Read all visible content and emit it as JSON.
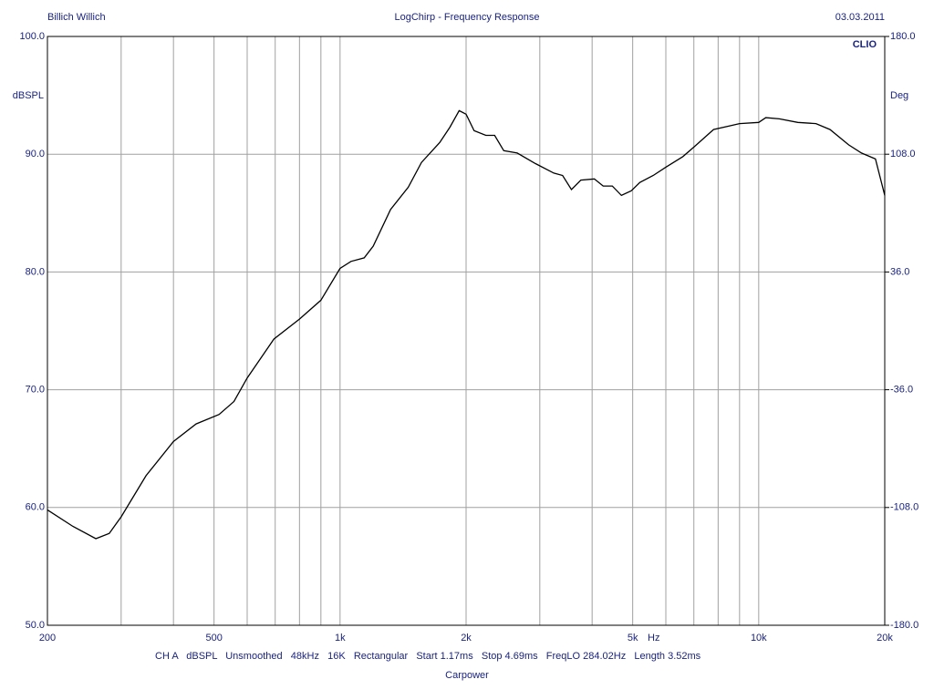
{
  "chart_data": {
    "type": "line",
    "title": "LogChirp - Frequency Response",
    "header_left": "Billich Willich",
    "header_right": "03.03.2011",
    "brand": "CLIO",
    "ylabel": "dBSPL",
    "y2label": "Deg",
    "xlabel": "Hz",
    "footer": "CH A   dBSPL   Unsmoothed   48kHz   16K   Rectangular   Start 1.17ms   Stop 4.69ms   FreqLO 284.02Hz   Length 3.52ms",
    "subfooter": "Carpower",
    "xscale": "log",
    "grid": true,
    "xlim": [
      200,
      20000
    ],
    "xticks": [
      200,
      500,
      {
        "value": 1000,
        "label": "1k"
      },
      {
        "value": 2000,
        "label": "2k"
      },
      {
        "value": 5000,
        "label": "5k"
      },
      {
        "value": 10000,
        "label": "10k"
      },
      {
        "value": 20000,
        "label": "20k"
      }
    ],
    "xminor_ticks": [
      300,
      400,
      600,
      700,
      800,
      900,
      3000,
      4000,
      6000,
      7000,
      8000,
      9000
    ],
    "ylim": [
      50,
      100
    ],
    "yticks": [
      {
        "value": 50,
        "label": "50.0"
      },
      {
        "value": 60,
        "label": "60.0"
      },
      {
        "value": 70,
        "label": "70.0"
      },
      {
        "value": 80,
        "label": "80.0"
      },
      {
        "value": 90,
        "label": "90.0"
      },
      {
        "value": 100,
        "label": "100.0"
      }
    ],
    "y2lim": [
      -180,
      180
    ],
    "y2ticks": [
      {
        "value": -180,
        "label": "-180.0"
      },
      {
        "value": -108,
        "label": "-108.0"
      },
      {
        "value": -36,
        "label": "-36.0"
      },
      {
        "value": 36,
        "label": "36.0"
      },
      {
        "value": 108,
        "label": "108.0"
      },
      {
        "value": 180,
        "label": "180.0"
      }
    ],
    "x": [
      200,
      230,
      261,
      281,
      300,
      344,
      400,
      453,
      514,
      558,
      600,
      695,
      800,
      900,
      1000,
      1062,
      1142,
      1200,
      1320,
      1455,
      1565,
      1730,
      1830,
      1925,
      2000,
      2090,
      2230,
      2340,
      2460,
      2650,
      2930,
      3240,
      3400,
      3570,
      3760,
      4050,
      4250,
      4470,
      4700,
      4960,
      5200,
      5600,
      6000,
      6590,
      7000,
      7800,
      8500,
      9000,
      10000,
      10400,
      11200,
      12400,
      13700,
      14800,
      16400,
      17600,
      19000,
      20000
    ],
    "series": [
      {
        "color": "#000000",
        "values": [
          59.8,
          58.4,
          57.35,
          57.8,
          59.2,
          62.7,
          65.6,
          67.1,
          67.9,
          69.0,
          71.0,
          74.3,
          76.0,
          77.6,
          80.3,
          80.9,
          81.2,
          82.2,
          85.3,
          87.2,
          89.3,
          91.0,
          92.3,
          93.7,
          93.4,
          92.0,
          91.6,
          91.6,
          90.3,
          90.1,
          89.2,
          88.4,
          88.2,
          87.0,
          87.8,
          87.9,
          87.3,
          87.3,
          86.5,
          86.9,
          87.6,
          88.2,
          88.9,
          89.8,
          90.6,
          92.1,
          92.4,
          92.6,
          92.7,
          93.1,
          93.0,
          92.7,
          92.6,
          92.1,
          90.8,
          90.1,
          89.6,
          86.5
        ]
      }
    ]
  }
}
